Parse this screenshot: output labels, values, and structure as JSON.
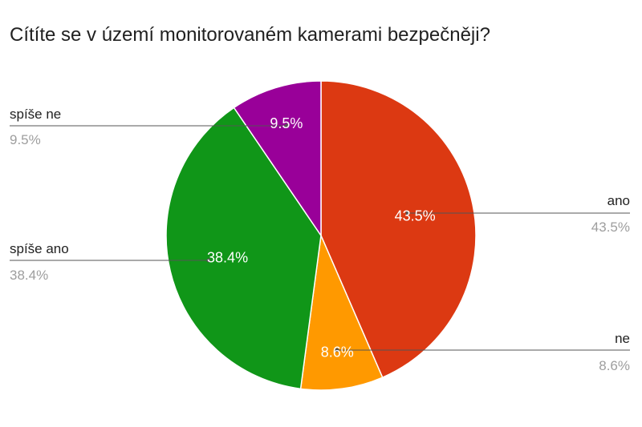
{
  "chart_data": {
    "type": "pie",
    "title": "Cítíte se v území monitorovaném kamerami bezpečněji?",
    "slices": [
      {
        "label": "ano",
        "value": 43.5,
        "display": "43.5%",
        "color": "#dc3912",
        "side": "right"
      },
      {
        "label": "ne",
        "value": 8.6,
        "display": "8.6%",
        "color": "#ff9900",
        "side": "right"
      },
      {
        "label": "spíše ano",
        "value": 38.4,
        "display": "38.4%",
        "color": "#109618",
        "side": "left"
      },
      {
        "label": "spíše ne",
        "value": 9.5,
        "display": "9.5%",
        "color": "#990099",
        "side": "left"
      }
    ],
    "start_angle_deg": 0,
    "direction": "clockwise",
    "legend": "labeled-callouts"
  }
}
